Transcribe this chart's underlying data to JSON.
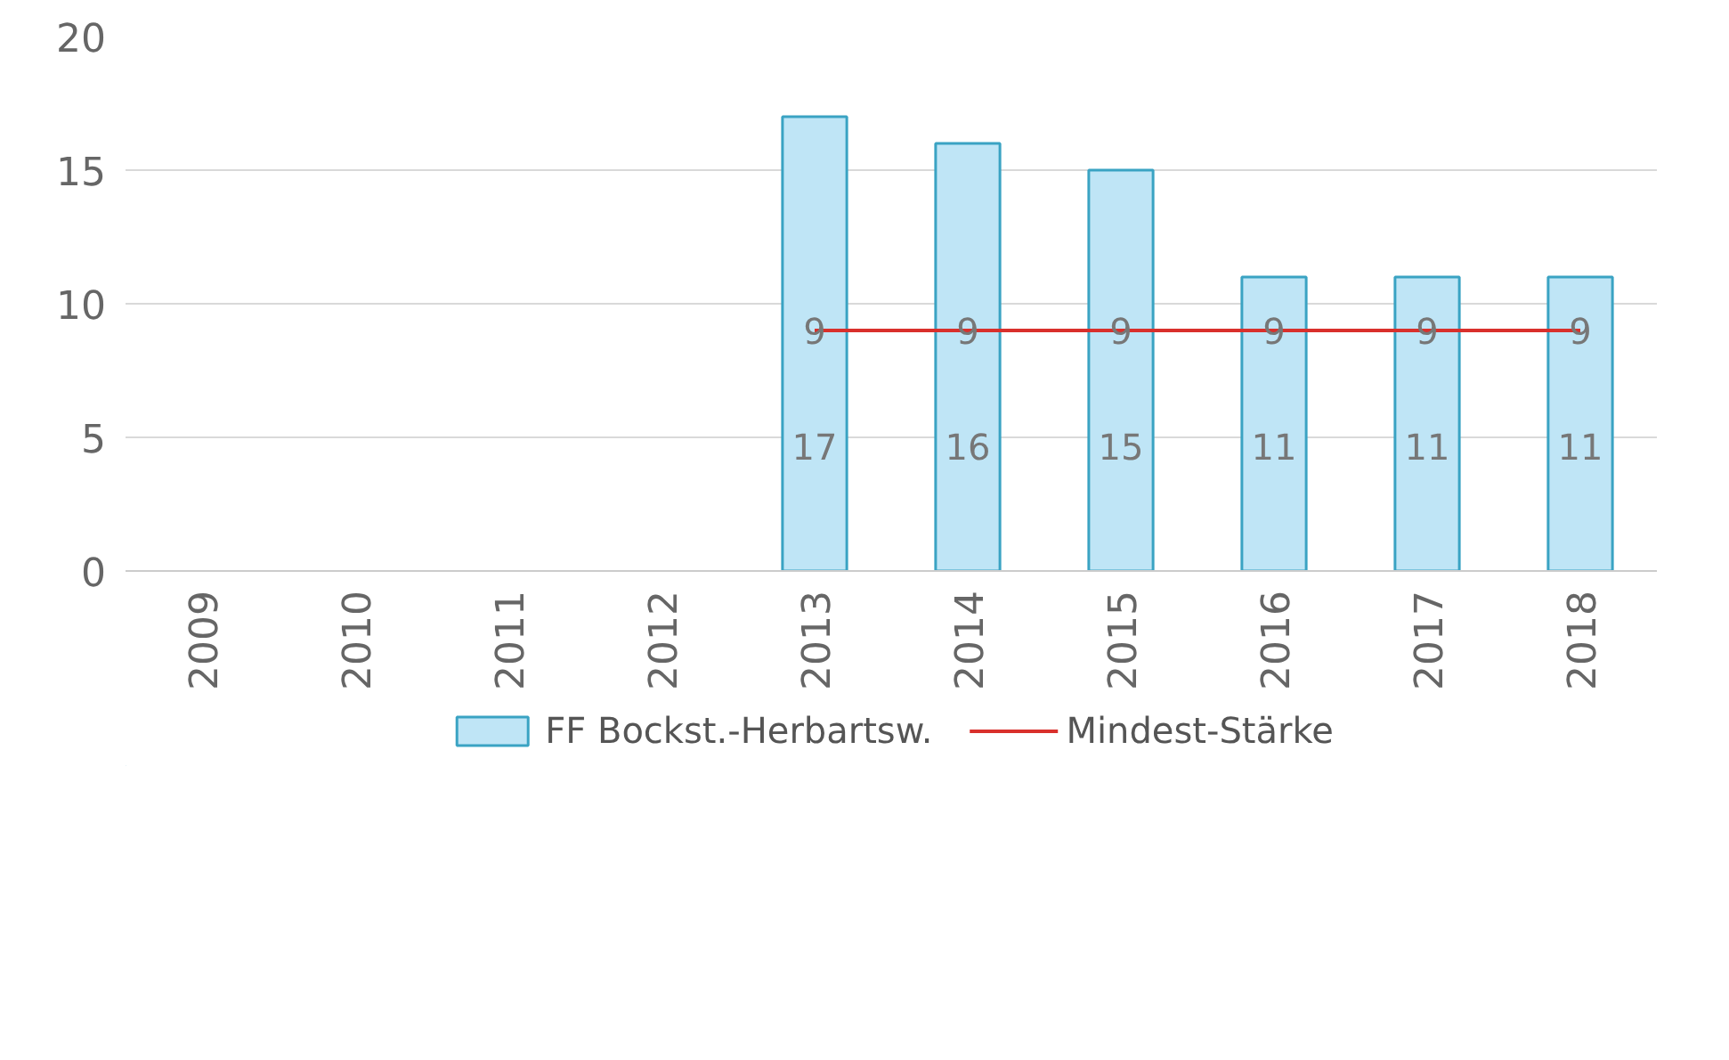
{
  "chart_data": {
    "type": "bar",
    "categories": [
      "2009",
      "2010",
      "2011",
      "2012",
      "2013",
      "2014",
      "2015",
      "2016",
      "2017",
      "2018"
    ],
    "series": [
      {
        "name": "FF Bockst.-Herbartsw.",
        "color": "#bfe5f6",
        "values": [
          null,
          null,
          null,
          null,
          17,
          16,
          15,
          11,
          11,
          11
        ]
      },
      {
        "name": "Mindest-Stärke",
        "type": "line",
        "color": "#d9302c",
        "values": [
          null,
          null,
          null,
          null,
          9,
          9,
          9,
          9,
          9,
          9
        ]
      }
    ],
    "ylim": [
      0,
      20
    ],
    "yticks": [
      0,
      5,
      10,
      15,
      20
    ],
    "grid": "y",
    "legend": "bottom",
    "data_labels": true
  }
}
